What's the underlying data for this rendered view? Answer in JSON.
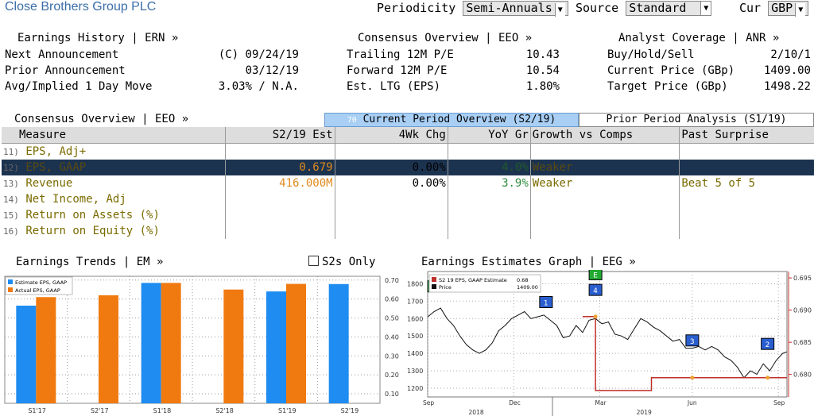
{
  "header": {
    "title": "Close Brothers Group PLC",
    "periodicity_label": "Periodicity",
    "periodicity_value": "Semi-Annuals",
    "source_label": "Source",
    "source_value": "Standard",
    "cur_label": "Cur",
    "cur_value": "GBP"
  },
  "earnings_history": {
    "title": "Earnings History | ERN »",
    "next_label": "Next Announcement",
    "next_value": "(C) 09/24/19",
    "prior_label": "Prior Announcement",
    "prior_value": "03/12/19",
    "avg_label": "Avg/Implied 1 Day Move",
    "avg_value": "3.03% / N.A."
  },
  "consensus": {
    "title": "Consensus Overview | EEO »",
    "trailing_label": "Trailing 12M P/E",
    "trailing_value": "10.43",
    "forward_label": "Forward 12M P/E",
    "forward_value": "10.54",
    "ltg_label": "Est. LTG (EPS)",
    "ltg_value": "1.80%"
  },
  "analyst": {
    "title": "Analyst Coverage | ANR »",
    "bhs_label": "Buy/Hold/Sell",
    "bhs_value": "2/10/1",
    "price_label": "Current Price (GBp)",
    "price_value": "1409.00",
    "target_label": "Target Price (GBp)",
    "target_value": "1498.22"
  },
  "consensus_table": {
    "title": "Consensus Overview | EEO »",
    "tab_current_num": "70",
    "tab_current": "Current Period Overview (S2/19)",
    "tab_prior": "Prior Period Analysis (S1/19)",
    "columns": [
      "Measure",
      "S2/19 Est",
      "4Wk Chg",
      "YoY Gr",
      "Growth vs Comps",
      "Past Surprise"
    ],
    "rows": [
      {
        "num": "11)",
        "measure": "EPS, Adj+",
        "est": "",
        "chg": "",
        "yoy": "",
        "comps": "",
        "surprise": ""
      },
      {
        "num": "12)",
        "measure": "EPS, GAAP",
        "est": "0.679",
        "chg": "0.00%",
        "yoy": "4.0%",
        "comps": "Weaker",
        "surprise": ""
      },
      {
        "num": "13)",
        "measure": "Revenue",
        "est": "416.000M",
        "chg": "0.00%",
        "yoy": "3.9%",
        "comps": "Weaker",
        "surprise": "Beat 5 of 5"
      },
      {
        "num": "14)",
        "measure": "Net Income, Adj",
        "est": "",
        "chg": "",
        "yoy": "",
        "comps": "",
        "surprise": ""
      },
      {
        "num": "15)",
        "measure": "Return on Assets (%)",
        "est": "",
        "chg": "",
        "yoy": "",
        "comps": "",
        "surprise": ""
      },
      {
        "num": "16)",
        "measure": "Return on Equity (%)",
        "est": "",
        "chg": "",
        "yoy": "",
        "comps": "",
        "surprise": ""
      }
    ]
  },
  "earnings_trends": {
    "title": "Earnings Trends | EM »",
    "s2s_label": "S2s Only",
    "legend": [
      "Estimate EPS, GAAP",
      "Actual EPS, GAAP"
    ],
    "colors": {
      "estimate": "#1e8cf0",
      "actual": "#f07a10"
    }
  },
  "estimates_graph": {
    "title": "Earnings Estimates Graph | EEG »",
    "legend_est_label": "S2 19 EPS, GAAP Estimate",
    "legend_est_value": "0.68",
    "legend_price_label": "Price",
    "legend_price_value": "1409.00",
    "colors": {
      "estimate": "#c0302a",
      "price": "#111111"
    }
  },
  "chart_data": [
    {
      "type": "bar",
      "title": "Earnings Trends",
      "categories": [
        "S1'17",
        "S2'17",
        "S1'18",
        "S2'18",
        "S1'19",
        "S2'19"
      ],
      "series": [
        {
          "name": "Estimate EPS, GAAP",
          "values": [
            0.565,
            null,
            0.685,
            null,
            0.64,
            0.679
          ]
        },
        {
          "name": "Actual EPS, GAAP",
          "values": [
            0.61,
            0.62,
            0.685,
            0.65,
            0.68,
            null
          ]
        }
      ],
      "ylim": [
        0.05,
        0.72
      ],
      "yticks": [
        "0.10",
        "0.20",
        "0.30",
        "0.40",
        "0.50",
        "0.60",
        "0.70"
      ],
      "legend": "top-left"
    },
    {
      "type": "line",
      "title": "Earnings Estimates Graph",
      "x_ticks_months": [
        "Sep",
        "Dec",
        "Mar",
        "Jun",
        "Sep"
      ],
      "x_ticks_years": [
        "2018",
        "2019"
      ],
      "y_left_ticks": [
        "1200",
        "1300",
        "1400",
        "1500",
        "1600",
        "1700",
        "1800"
      ],
      "y_right_ticks": [
        "0.680",
        "0.685",
        "0.690",
        "0.695"
      ],
      "y_left_range": [
        1150,
        1870
      ],
      "y_right_range": [
        0.6765,
        0.696
      ],
      "series": [
        {
          "name": "Price",
          "axis": "left",
          "points": [
            [
              0,
              1610
            ],
            [
              3,
              1640
            ],
            [
              6,
              1660
            ],
            [
              9,
              1600
            ],
            [
              12,
              1560
            ],
            [
              15,
              1500
            ],
            [
              18,
              1450
            ],
            [
              21,
              1420
            ],
            [
              24,
              1400
            ],
            [
              27,
              1420
            ],
            [
              30,
              1460
            ],
            [
              33,
              1530
            ],
            [
              36,
              1560
            ],
            [
              39,
              1600
            ],
            [
              42,
              1620
            ],
            [
              45,
              1640
            ],
            [
              48,
              1600
            ],
            [
              51,
              1610
            ],
            [
              54,
              1620
            ],
            [
              57,
              1590
            ],
            [
              60,
              1560
            ],
            [
              63,
              1490
            ],
            [
              66,
              1500
            ],
            [
              69,
              1560
            ],
            [
              72,
              1520
            ],
            [
              75,
              1590
            ],
            [
              78,
              1600
            ],
            [
              81,
              1570
            ],
            [
              84,
              1580
            ],
            [
              87,
              1510
            ],
            [
              90,
              1500
            ],
            [
              93,
              1480
            ],
            [
              96,
              1540
            ],
            [
              99,
              1600
            ],
            [
              102,
              1580
            ],
            [
              105,
              1550
            ],
            [
              108,
              1530
            ],
            [
              111,
              1500
            ],
            [
              114,
              1470
            ],
            [
              117,
              1480
            ],
            [
              120,
              1430
            ],
            [
              123,
              1430
            ],
            [
              126,
              1440
            ],
            [
              129,
              1420
            ],
            [
              132,
              1440
            ],
            [
              135,
              1420
            ],
            [
              138,
              1380
            ],
            [
              141,
              1360
            ],
            [
              144,
              1320
            ],
            [
              147,
              1260
            ],
            [
              150,
              1300
            ],
            [
              153,
              1280
            ],
            [
              156,
              1340
            ],
            [
              159,
              1300
            ],
            [
              162,
              1360
            ],
            [
              165,
              1400
            ],
            [
              167,
              1409
            ]
          ]
        },
        {
          "name": "S2 19 EPS, GAAP Estimate",
          "axis": "right",
          "points": [
            [
              0,
              null
            ],
            [
              72,
              0.689
            ],
            [
              78,
              0.689
            ],
            [
              78,
              0.6775
            ],
            [
              104,
              0.6775
            ],
            [
              104,
              0.6795
            ],
            [
              167,
              0.6795
            ]
          ]
        }
      ],
      "events": [
        {
          "label": "E",
          "color": "#22aa33",
          "x": 3,
          "price": 1780
        },
        {
          "label": "1",
          "color": "#2a5ecf",
          "x": 55,
          "price": 1690
        },
        {
          "label": "E",
          "color": "#22aa33",
          "x": 78,
          "price": 1850
        },
        {
          "label": "4",
          "color": "#2a5ecf",
          "x": 78,
          "price": 1760
        },
        {
          "label": "3",
          "color": "#2a5ecf",
          "x": 123,
          "price": 1470
        },
        {
          "label": "2",
          "color": "#2a5ecf",
          "x": 158,
          "price": 1450
        }
      ]
    }
  ]
}
